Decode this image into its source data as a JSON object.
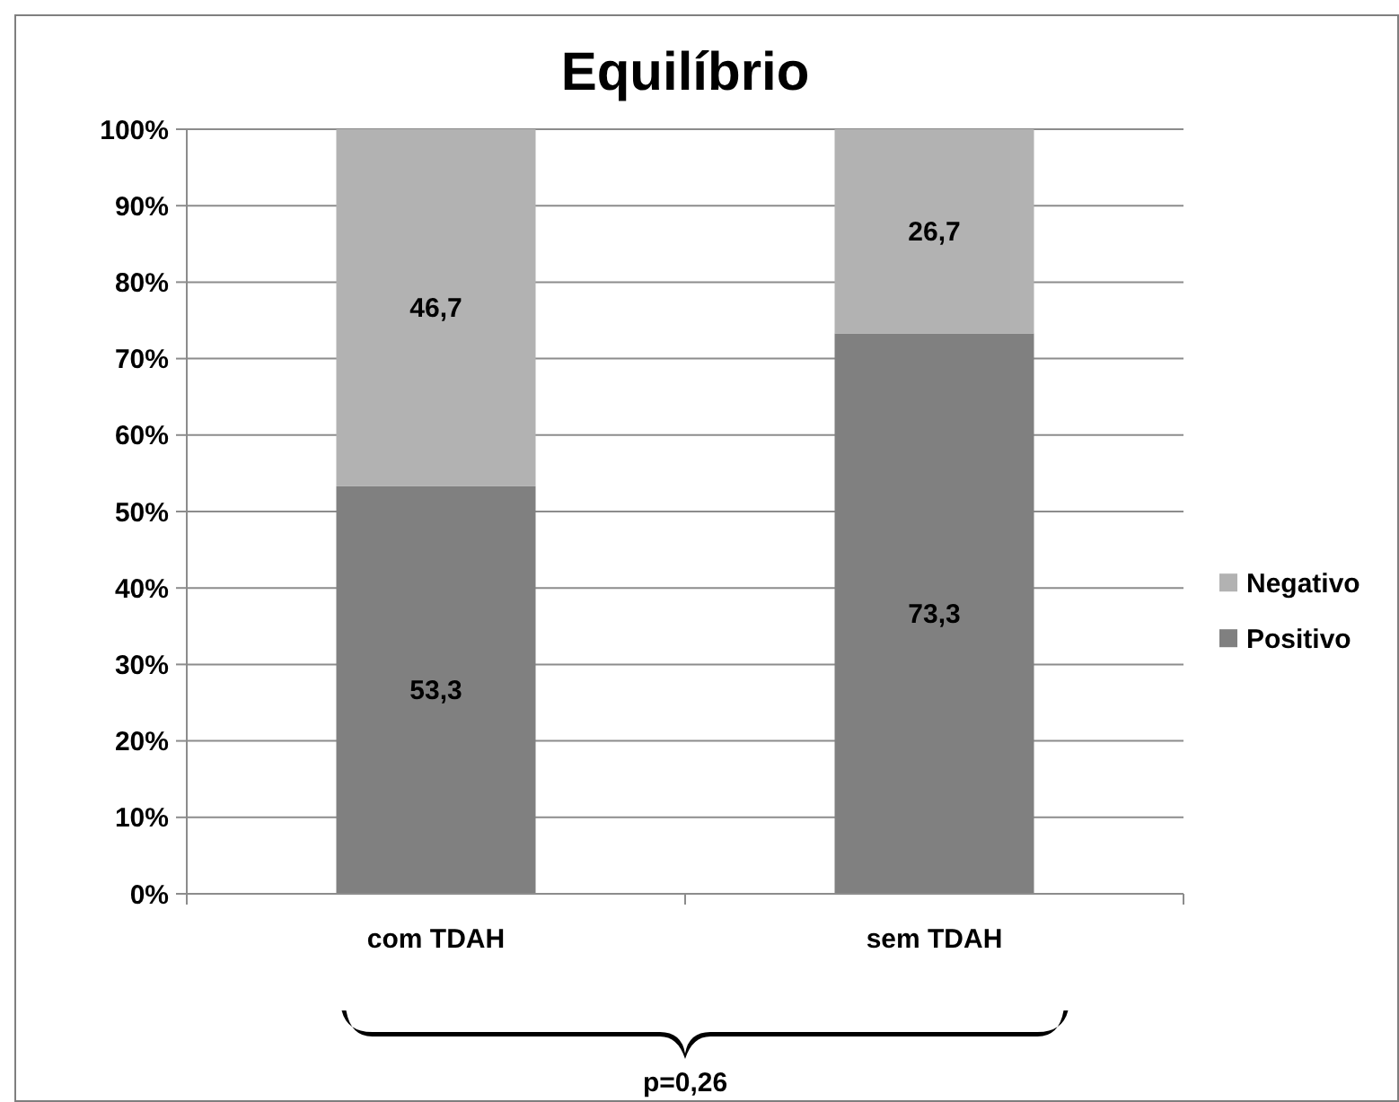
{
  "chart_data": {
    "type": "bar",
    "title": "Equilíbrio",
    "stacked": true,
    "categories": [
      "com TDAH",
      "sem TDAH"
    ],
    "series": [
      {
        "name": "Positivo",
        "color": "#808080",
        "values": [
          53.3,
          73.3
        ],
        "value_labels": [
          "53,3",
          "73,3"
        ]
      },
      {
        "name": "Negativo",
        "color": "#b2b2b2",
        "values": [
          46.7,
          26.7
        ],
        "value_labels": [
          "46,7",
          "26,7"
        ]
      }
    ],
    "ylim": [
      0,
      100
    ],
    "yticks": [
      {
        "value": 0,
        "label": "0%"
      },
      {
        "value": 10,
        "label": "10%"
      },
      {
        "value": 20,
        "label": "20%"
      },
      {
        "value": 30,
        "label": "30%"
      },
      {
        "value": 40,
        "label": "40%"
      },
      {
        "value": 50,
        "label": "50%"
      },
      {
        "value": 60,
        "label": "60%"
      },
      {
        "value": 70,
        "label": "70%"
      },
      {
        "value": 80,
        "label": "80%"
      },
      {
        "value": 90,
        "label": "90%"
      },
      {
        "value": 100,
        "label": "100%"
      }
    ],
    "grid": "y",
    "legend": "right",
    "annotations": [
      "p=0,26"
    ]
  }
}
